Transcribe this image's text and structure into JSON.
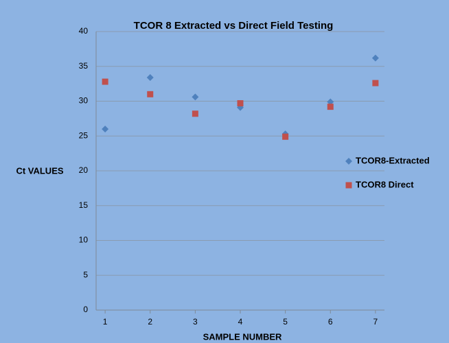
{
  "chart_data": {
    "type": "scatter",
    "title": "TCOR 8 Extracted vs Direct Field Testing",
    "x_label": "SAMPLE NUMBER",
    "y_label": "Ct VALUES",
    "x": [
      1,
      2,
      3,
      4,
      5,
      6,
      7
    ],
    "series": [
      {
        "name": "TCOR8-Extracted",
        "color": "#4f81bd",
        "marker": "diamond",
        "values": [
          26.0,
          33.4,
          30.6,
          29.1,
          25.3,
          29.9,
          36.2
        ]
      },
      {
        "name": "TCOR8 Direct",
        "color": "#c0504d",
        "marker": "square",
        "values": [
          32.8,
          31.0,
          28.2,
          29.7,
          24.9,
          29.2,
          32.6
        ]
      }
    ],
    "xlim": [
      0.8,
      7.2
    ],
    "xticks": [
      1,
      2,
      3,
      4,
      5,
      6,
      7
    ],
    "ylim": [
      0,
      40
    ],
    "yticks": [
      0,
      5,
      10,
      15,
      20,
      25,
      30,
      35,
      40
    ],
    "grid": true,
    "legend": "right"
  }
}
